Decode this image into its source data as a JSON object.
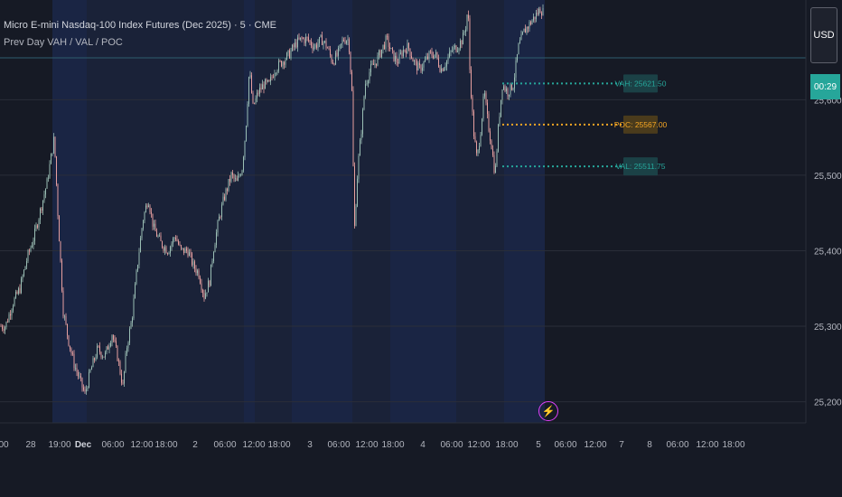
{
  "header": {
    "title": "Micro E-mini Nasdaq-100 Index Futures (Dec 2025) · 5 · CME",
    "indicator": "Prev Day VAH / VAL / POC"
  },
  "currency": "USD",
  "countdown": "00:29",
  "chart_data": {
    "type": "candlestick",
    "title": "",
    "y_ticks": [
      "25,600.00",
      "25,500.00",
      "25,400.00",
      "25,300.00",
      "25,200.00"
    ],
    "y_tick_values": [
      25600,
      25500,
      25400,
      25300,
      25200
    ],
    "ylim": [
      25172,
      25732
    ],
    "x_labels": [
      "00",
      "28",
      "19:00",
      "Dec",
      "06:00",
      "12:00",
      "18:00",
      "2",
      "06:00",
      "12:00",
      "18:00",
      "3",
      "06:00",
      "12:00",
      "18:00",
      "4",
      "06:00",
      "12:00",
      "18:00",
      "5",
      "06:00",
      "12:00",
      "7",
      "8",
      "06:00",
      "12:00",
      "18:00"
    ],
    "x_label_bold": [
      false,
      false,
      false,
      true,
      false,
      false,
      false,
      false,
      false,
      false,
      false,
      false,
      false,
      false,
      false,
      false,
      false,
      false,
      false,
      false,
      false,
      false,
      false,
      false,
      false,
      false,
      false
    ],
    "price_path": [
      [
        0,
        25300
      ],
      [
        6,
        25300
      ],
      [
        14,
        25330
      ],
      [
        22,
        25350
      ],
      [
        30,
        25390
      ],
      [
        38,
        25420
      ],
      [
        46,
        25460
      ],
      [
        52,
        25490
      ],
      [
        56,
        25520
      ],
      [
        60,
        25550
      ],
      [
        64,
        25450
      ],
      [
        70,
        25320
      ],
      [
        76,
        25280
      ],
      [
        82,
        25250
      ],
      [
        88,
        25230
      ],
      [
        94,
        25210
      ],
      [
        100,
        25240
      ],
      [
        108,
        25270
      ],
      [
        116,
        25260
      ],
      [
        124,
        25290
      ],
      [
        130,
        25260
      ],
      [
        136,
        25220
      ],
      [
        140,
        25270
      ],
      [
        146,
        25310
      ],
      [
        152,
        25380
      ],
      [
        158,
        25440
      ],
      [
        164,
        25470
      ],
      [
        170,
        25430
      ],
      [
        178,
        25410
      ],
      [
        186,
        25400
      ],
      [
        194,
        25420
      ],
      [
        200,
        25400
      ],
      [
        208,
        25400
      ],
      [
        214,
        25380
      ],
      [
        220,
        25370
      ],
      [
        226,
        25340
      ],
      [
        232,
        25360
      ],
      [
        236,
        25400
      ],
      [
        242,
        25440
      ],
      [
        248,
        25470
      ],
      [
        256,
        25500
      ],
      [
        262,
        25490
      ],
      [
        268,
        25510
      ],
      [
        272,
        25560
      ],
      [
        276,
        25640
      ],
      [
        280,
        25590
      ],
      [
        286,
        25610
      ],
      [
        292,
        25620
      ],
      [
        298,
        25620
      ],
      [
        304,
        25640
      ],
      [
        312,
        25650
      ],
      [
        320,
        25660
      ],
      [
        328,
        25675
      ],
      [
        334,
        25680
      ],
      [
        340,
        25680
      ],
      [
        348,
        25670
      ],
      [
        356,
        25680
      ],
      [
        362,
        25670
      ],
      [
        368,
        25650
      ],
      [
        374,
        25660
      ],
      [
        380,
        25680
      ],
      [
        386,
        25680
      ],
      [
        390,
        25600
      ],
      [
        392,
        25420
      ],
      [
        396,
        25510
      ],
      [
        400,
        25560
      ],
      [
        404,
        25620
      ],
      [
        410,
        25640
      ],
      [
        416,
        25650
      ],
      [
        422,
        25665
      ],
      [
        428,
        25680
      ],
      [
        434,
        25660
      ],
      [
        440,
        25650
      ],
      [
        446,
        25665
      ],
      [
        452,
        25670
      ],
      [
        458,
        25650
      ],
      [
        464,
        25640
      ],
      [
        470,
        25650
      ],
      [
        476,
        25660
      ],
      [
        482,
        25660
      ],
      [
        488,
        25640
      ],
      [
        494,
        25650
      ],
      [
        500,
        25665
      ],
      [
        506,
        25670
      ],
      [
        512,
        25680
      ],
      [
        516,
        25700
      ],
      [
        518,
        25725
      ],
      [
        520,
        25640
      ],
      [
        524,
        25560
      ],
      [
        528,
        25520
      ],
      [
        532,
        25560
      ],
      [
        536,
        25610
      ],
      [
        540,
        25570
      ],
      [
        544,
        25540
      ],
      [
        548,
        25500
      ],
      [
        552,
        25570
      ],
      [
        556,
        25620
      ],
      [
        562,
        25610
      ],
      [
        568,
        25620
      ],
      [
        574,
        25670
      ],
      [
        580,
        25690
      ],
      [
        586,
        25700
      ],
      [
        592,
        25710
      ],
      [
        598,
        25720
      ],
      [
        602,
        25715
      ]
    ],
    "levels": [
      {
        "label": "VAH: 25621.50",
        "value": 25621.5,
        "color": "#26a69a"
      },
      {
        "label": "POC: 25567.00",
        "value": 25567,
        "color": "#f5a623"
      },
      {
        "label": "VAL: 25511.75",
        "value": 25511.75,
        "color": "#26a69a"
      }
    ],
    "grid": true,
    "legend": "none"
  }
}
